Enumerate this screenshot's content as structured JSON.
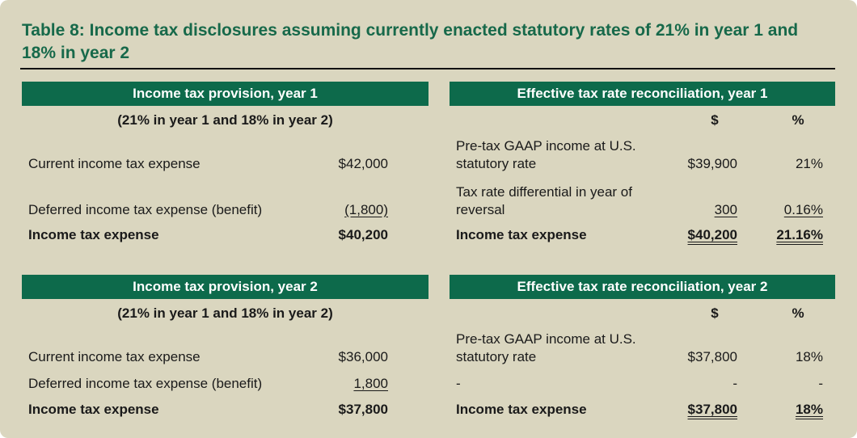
{
  "header": {
    "title": "Table 8: Income tax disclosures assuming currently enacted statutory rates of 21% in year 1 and 18% in year 2"
  },
  "panels": [
    {
      "title": "Income tax provision, year 1",
      "subtitle": "(21% in year 1 and 18% in year 2)",
      "rows": [
        {
          "label": "Current income tax expense",
          "value": "$42,000"
        },
        {
          "label": "Deferred income tax expense (benefit)",
          "value": "(1,800)",
          "underline": "single"
        },
        {
          "label": "Income tax expense",
          "value": "$40,200",
          "bold": true
        }
      ]
    },
    {
      "title": "Effective tax rate reconciliation, year 1",
      "columns": [
        "$",
        "%"
      ],
      "rows": [
        {
          "label": "Pre-tax GAAP income at U.S. statutory rate",
          "amount": "$39,900",
          "percent": "21%"
        },
        {
          "label": "Tax rate differential in year of reversal",
          "amount": "300",
          "percent": "0.16%",
          "underline": "single"
        },
        {
          "label": "Income tax expense",
          "amount": "$40,200",
          "percent": "21.16%",
          "bold": true,
          "underline": "double"
        }
      ]
    },
    {
      "title": "Income tax provision, year 2",
      "subtitle": "(21% in year 1 and 18% in year 2)",
      "rows": [
        {
          "label": "Current income tax expense",
          "value": "$36,000"
        },
        {
          "label": "Deferred income tax expense (benefit)",
          "value": "1,800",
          "underline": "single"
        },
        {
          "label": "Income tax expense",
          "value": "$37,800",
          "bold": true
        }
      ]
    },
    {
      "title": "Effective tax rate reconciliation, year 2",
      "columns": [
        "$",
        "%"
      ],
      "rows": [
        {
          "label": "Pre-tax GAAP income at U.S. statutory rate",
          "amount": "$37,800",
          "percent": "18%"
        },
        {
          "label": "-",
          "amount": "-",
          "percent": "-"
        },
        {
          "label": "Income tax expense",
          "amount": "$37,800",
          "percent": "18%",
          "bold": true,
          "underline": "double"
        }
      ]
    }
  ]
}
